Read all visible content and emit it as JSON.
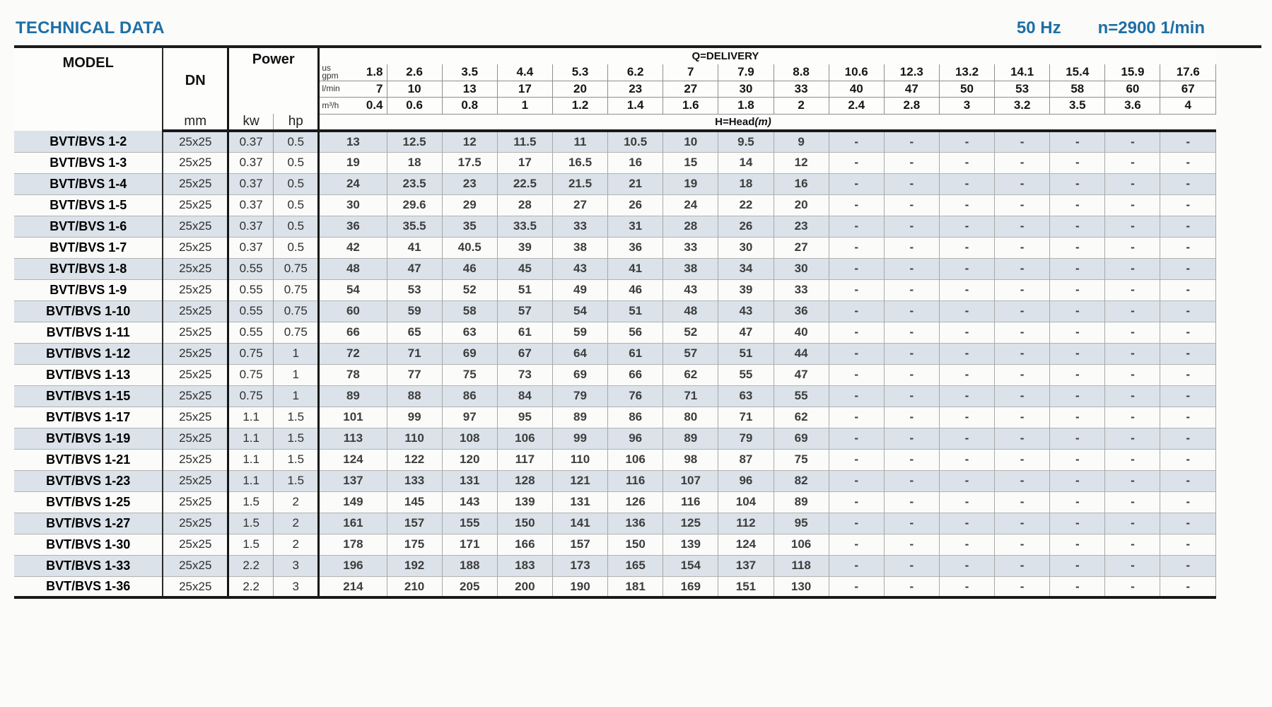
{
  "page": {
    "title": "TECHNICAL DATA",
    "frequency": "50 Hz",
    "speed": "n=2900 1/min",
    "accent_blue": "#1d6fa5",
    "row_shade": "#dbe2e9"
  },
  "table": {
    "model_header": "MODEL",
    "dn_header": "DN",
    "dn_unit": "mm",
    "power_header": "Power",
    "kw_label": "kw",
    "hp_label": "hp",
    "delivery_header": "Q=DELIVERY",
    "head_label": "H=Head",
    "head_unit": "(m)",
    "units": [
      {
        "label": "us\ngpm",
        "values": [
          "1.8",
          "2.6",
          "3.5",
          "4.4",
          "5.3",
          "6.2",
          "7",
          "7.9",
          "8.8",
          "10.6",
          "12.3",
          "13.2",
          "14.1",
          "15.4",
          "15.9",
          "17.6"
        ]
      },
      {
        "label": "l/min",
        "values": [
          "7",
          "10",
          "13",
          "17",
          "20",
          "23",
          "27",
          "30",
          "33",
          "40",
          "47",
          "50",
          "53",
          "58",
          "60",
          "67"
        ]
      },
      {
        "label": "m³/h",
        "values": [
          "0.4",
          "0.6",
          "0.8",
          "1",
          "1.2",
          "1.4",
          "1.6",
          "1.8",
          "2",
          "2.4",
          "2.8",
          "3",
          "3.2",
          "3.5",
          "3.6",
          "4"
        ]
      }
    ],
    "rows": [
      {
        "model": "BVT/BVS 1-2",
        "dn": "25x25",
        "kw": "0.37",
        "hp": "0.5",
        "head": [
          "13",
          "12.5",
          "12",
          "11.5",
          "11",
          "10.5",
          "10",
          "9.5",
          "9",
          "-",
          "-",
          "-",
          "-",
          "-",
          "-",
          "-"
        ]
      },
      {
        "model": "BVT/BVS 1-3",
        "dn": "25x25",
        "kw": "0.37",
        "hp": "0.5",
        "head": [
          "19",
          "18",
          "17.5",
          "17",
          "16.5",
          "16",
          "15",
          "14",
          "12",
          "-",
          "-",
          "-",
          "-",
          "-",
          "-",
          "-"
        ]
      },
      {
        "model": "BVT/BVS 1-4",
        "dn": "25x25",
        "kw": "0.37",
        "hp": "0.5",
        "head": [
          "24",
          "23.5",
          "23",
          "22.5",
          "21.5",
          "21",
          "19",
          "18",
          "16",
          "-",
          "-",
          "-",
          "-",
          "-",
          "-",
          "-"
        ]
      },
      {
        "model": "BVT/BVS 1-5",
        "dn": "25x25",
        "kw": "0.37",
        "hp": "0.5",
        "head": [
          "30",
          "29.6",
          "29",
          "28",
          "27",
          "26",
          "24",
          "22",
          "20",
          "-",
          "-",
          "-",
          "-",
          "-",
          "-",
          "-"
        ]
      },
      {
        "model": "BVT/BVS 1-6",
        "dn": "25x25",
        "kw": "0.37",
        "hp": "0.5",
        "head": [
          "36",
          "35.5",
          "35",
          "33.5",
          "33",
          "31",
          "28",
          "26",
          "23",
          "-",
          "-",
          "-",
          "-",
          "-",
          "-",
          "-"
        ]
      },
      {
        "model": "BVT/BVS 1-7",
        "dn": "25x25",
        "kw": "0.37",
        "hp": "0.5",
        "head": [
          "42",
          "41",
          "40.5",
          "39",
          "38",
          "36",
          "33",
          "30",
          "27",
          "-",
          "-",
          "-",
          "-",
          "-",
          "-",
          "-"
        ]
      },
      {
        "model": "BVT/BVS 1-8",
        "dn": "25x25",
        "kw": "0.55",
        "hp": "0.75",
        "head": [
          "48",
          "47",
          "46",
          "45",
          "43",
          "41",
          "38",
          "34",
          "30",
          "-",
          "-",
          "-",
          "-",
          "-",
          "-",
          "-"
        ]
      },
      {
        "model": "BVT/BVS 1-9",
        "dn": "25x25",
        "kw": "0.55",
        "hp": "0.75",
        "head": [
          "54",
          "53",
          "52",
          "51",
          "49",
          "46",
          "43",
          "39",
          "33",
          "-",
          "-",
          "-",
          "-",
          "-",
          "-",
          "-"
        ]
      },
      {
        "model": "BVT/BVS 1-10",
        "dn": "25x25",
        "kw": "0.55",
        "hp": "0.75",
        "head": [
          "60",
          "59",
          "58",
          "57",
          "54",
          "51",
          "48",
          "43",
          "36",
          "-",
          "-",
          "-",
          "-",
          "-",
          "-",
          "-"
        ]
      },
      {
        "model": "BVT/BVS 1-11",
        "dn": "25x25",
        "kw": "0.55",
        "hp": "0.75",
        "head": [
          "66",
          "65",
          "63",
          "61",
          "59",
          "56",
          "52",
          "47",
          "40",
          "-",
          "-",
          "-",
          "-",
          "-",
          "-",
          "-"
        ]
      },
      {
        "model": "BVT/BVS 1-12",
        "dn": "25x25",
        "kw": "0.75",
        "hp": "1",
        "head": [
          "72",
          "71",
          "69",
          "67",
          "64",
          "61",
          "57",
          "51",
          "44",
          "-",
          "-",
          "-",
          "-",
          "-",
          "-",
          "-"
        ]
      },
      {
        "model": "BVT/BVS 1-13",
        "dn": "25x25",
        "kw": "0.75",
        "hp": "1",
        "head": [
          "78",
          "77",
          "75",
          "73",
          "69",
          "66",
          "62",
          "55",
          "47",
          "-",
          "-",
          "-",
          "-",
          "-",
          "-",
          "-"
        ]
      },
      {
        "model": "BVT/BVS 1-15",
        "dn": "25x25",
        "kw": "0.75",
        "hp": "1",
        "head": [
          "89",
          "88",
          "86",
          "84",
          "79",
          "76",
          "71",
          "63",
          "55",
          "-",
          "-",
          "-",
          "-",
          "-",
          "-",
          "-"
        ]
      },
      {
        "model": "BVT/BVS 1-17",
        "dn": "25x25",
        "kw": "1.1",
        "hp": "1.5",
        "head": [
          "101",
          "99",
          "97",
          "95",
          "89",
          "86",
          "80",
          "71",
          "62",
          "-",
          "-",
          "-",
          "-",
          "-",
          "-",
          "-"
        ]
      },
      {
        "model": "BVT/BVS 1-19",
        "dn": "25x25",
        "kw": "1.1",
        "hp": "1.5",
        "head": [
          "113",
          "110",
          "108",
          "106",
          "99",
          "96",
          "89",
          "79",
          "69",
          "-",
          "-",
          "-",
          "-",
          "-",
          "-",
          "-"
        ]
      },
      {
        "model": "BVT/BVS 1-21",
        "dn": "25x25",
        "kw": "1.1",
        "hp": "1.5",
        "head": [
          "124",
          "122",
          "120",
          "117",
          "110",
          "106",
          "98",
          "87",
          "75",
          "-",
          "-",
          "-",
          "-",
          "-",
          "-",
          "-"
        ]
      },
      {
        "model": "BVT/BVS 1-23",
        "dn": "25x25",
        "kw": "1.1",
        "hp": "1.5",
        "head": [
          "137",
          "133",
          "131",
          "128",
          "121",
          "116",
          "107",
          "96",
          "82",
          "-",
          "-",
          "-",
          "-",
          "-",
          "-",
          "-"
        ]
      },
      {
        "model": "BVT/BVS 1-25",
        "dn": "25x25",
        "kw": "1.5",
        "hp": "2",
        "head": [
          "149",
          "145",
          "143",
          "139",
          "131",
          "126",
          "116",
          "104",
          "89",
          "-",
          "-",
          "-",
          "-",
          "-",
          "-",
          "-"
        ]
      },
      {
        "model": "BVT/BVS 1-27",
        "dn": "25x25",
        "kw": "1.5",
        "hp": "2",
        "head": [
          "161",
          "157",
          "155",
          "150",
          "141",
          "136",
          "125",
          "112",
          "95",
          "-",
          "-",
          "-",
          "-",
          "-",
          "-",
          "-"
        ]
      },
      {
        "model": "BVT/BVS 1-30",
        "dn": "25x25",
        "kw": "1.5",
        "hp": "2",
        "head": [
          "178",
          "175",
          "171",
          "166",
          "157",
          "150",
          "139",
          "124",
          "106",
          "-",
          "-",
          "-",
          "-",
          "-",
          "-",
          "-"
        ]
      },
      {
        "model": "BVT/BVS 1-33",
        "dn": "25x25",
        "kw": "2.2",
        "hp": "3",
        "head": [
          "196",
          "192",
          "188",
          "183",
          "173",
          "165",
          "154",
          "137",
          "118",
          "-",
          "-",
          "-",
          "-",
          "-",
          "-",
          "-"
        ]
      },
      {
        "model": "BVT/BVS 1-36",
        "dn": "25x25",
        "kw": "2.2",
        "hp": "3",
        "head": [
          "214",
          "210",
          "205",
          "200",
          "190",
          "181",
          "169",
          "151",
          "130",
          "-",
          "-",
          "-",
          "-",
          "-",
          "-",
          "-"
        ]
      }
    ]
  }
}
